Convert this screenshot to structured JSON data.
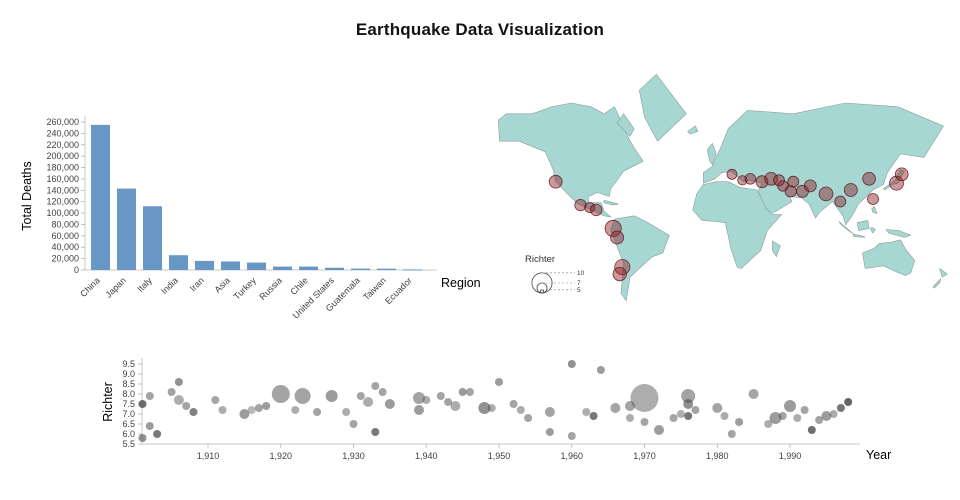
{
  "title": "Earthquake Data Visualization",
  "colors": {
    "bar": "#6897c6",
    "map_land": "#a6d7d3",
    "map_border": "#8d9e9c",
    "quake_fill": "#8c1c24",
    "quake_stroke": "#5e1014",
    "point": "#4a4a4a",
    "axis_label": "#3f3f3f",
    "axis_title": "#000000",
    "domain_line": "#c9c9c9",
    "tick": "#b6b6b6"
  },
  "chart_data": [
    {
      "type": "bar",
      "name": "total-deaths-by-region",
      "xlabel": "Region",
      "ylabel": "Total Deaths",
      "categories": [
        "China",
        "Japan",
        "Italy",
        "India",
        "Iran",
        "Asia",
        "Turkey",
        "Russia",
        "Chile",
        "United States",
        "Guatemala",
        "Taiwan",
        "Ecuador"
      ],
      "values": [
        255000,
        143000,
        112000,
        26000,
        16000,
        15000,
        13000,
        6000,
        6000,
        4000,
        2500,
        2400,
        1000
      ],
      "ylim": [
        0,
        260000
      ],
      "ytick_step": 20000
    },
    {
      "type": "map",
      "name": "earthquake-world-map",
      "legend_title": "Richter",
      "legend_values": [
        5,
        7,
        10
      ],
      "points": [
        {
          "lon": -122,
          "lat": 37,
          "richter": 7.8
        },
        {
          "lon": -103,
          "lat": 19,
          "richter": 7.4
        },
        {
          "lon": -96,
          "lat": 17,
          "richter": 7.0
        },
        {
          "lon": -91,
          "lat": 15,
          "richter": 7.5
        },
        {
          "lon": -78,
          "lat": -1,
          "richter": 8.8
        },
        {
          "lon": -75,
          "lat": -9,
          "richter": 7.9
        },
        {
          "lon": -71,
          "lat": -33,
          "richter": 8.5
        },
        {
          "lon": -73,
          "lat": -38,
          "richter": 8.0
        },
        {
          "lon": 13,
          "lat": 42,
          "richter": 7.0
        },
        {
          "lon": 21,
          "lat": 38,
          "richter": 6.8
        },
        {
          "lon": 27,
          "lat": 39,
          "richter": 7.2
        },
        {
          "lon": 36,
          "lat": 37,
          "richter": 7.6
        },
        {
          "lon": 43,
          "lat": 39,
          "richter": 7.8
        },
        {
          "lon": 49,
          "lat": 38,
          "richter": 7.3
        },
        {
          "lon": 52,
          "lat": 34,
          "richter": 7.2
        },
        {
          "lon": 58,
          "lat": 30,
          "richter": 7.4
        },
        {
          "lon": 60,
          "lat": 37,
          "richter": 7.3
        },
        {
          "lon": 67,
          "lat": 30,
          "richter": 7.6
        },
        {
          "lon": 73,
          "lat": 34,
          "richter": 7.6
        },
        {
          "lon": 85,
          "lat": 28,
          "richter": 8.1
        },
        {
          "lon": 96,
          "lat": 22,
          "richter": 7.3
        },
        {
          "lon": 104,
          "lat": 31,
          "richter": 7.9
        },
        {
          "lon": 118,
          "lat": 39,
          "richter": 7.8
        },
        {
          "lon": 121,
          "lat": 24,
          "richter": 7.3
        },
        {
          "lon": 139,
          "lat": 36,
          "richter": 8.2
        },
        {
          "lon": 143,
          "lat": 42,
          "richter": 7.8
        }
      ]
    },
    {
      "type": "scatter",
      "name": "richter-by-year",
      "xlabel": "Year",
      "ylabel": "Richter",
      "xlim": [
        1900,
        1999
      ],
      "ylim": [
        5.5,
        9.5
      ],
      "xticks": [
        1910,
        1920,
        1930,
        1940,
        1950,
        1960,
        1970,
        1980,
        1990
      ],
      "yticks": [
        5.5,
        6.0,
        6.5,
        7.0,
        7.5,
        8.0,
        8.5,
        9.0,
        9.5
      ],
      "point_format": "[year, richter, radius_px, opacity]",
      "points": [
        [
          1901,
          7.5,
          4,
          0.8
        ],
        [
          1901,
          5.8,
          4,
          0.6
        ],
        [
          1902,
          7.9,
          4,
          0.5
        ],
        [
          1902,
          6.4,
          4,
          0.55
        ],
        [
          1903,
          6.0,
          4,
          0.75
        ],
        [
          1905,
          8.1,
          4,
          0.5
        ],
        [
          1906,
          8.6,
          4,
          0.6
        ],
        [
          1906,
          7.7,
          5,
          0.45
        ],
        [
          1907,
          7.4,
          4,
          0.5
        ],
        [
          1908,
          7.1,
          4,
          0.7
        ],
        [
          1911,
          7.7,
          4,
          0.5
        ],
        [
          1912,
          7.2,
          4,
          0.45
        ],
        [
          1915,
          7.0,
          5,
          0.55
        ],
        [
          1916,
          7.2,
          4,
          0.4
        ],
        [
          1917,
          7.3,
          4,
          0.5
        ],
        [
          1918,
          7.4,
          4,
          0.55
        ],
        [
          1920,
          8.0,
          9,
          0.5
        ],
        [
          1922,
          7.2,
          4,
          0.45
        ],
        [
          1923,
          7.9,
          8,
          0.5
        ],
        [
          1925,
          7.1,
          4,
          0.5
        ],
        [
          1927,
          7.9,
          6,
          0.55
        ],
        [
          1929,
          7.1,
          4,
          0.45
        ],
        [
          1930,
          6.5,
          4,
          0.5
        ],
        [
          1931,
          7.9,
          4,
          0.5
        ],
        [
          1932,
          7.6,
          5,
          0.45
        ],
        [
          1933,
          8.4,
          4,
          0.5
        ],
        [
          1933,
          6.1,
          4,
          0.75
        ],
        [
          1934,
          8.1,
          4,
          0.5
        ],
        [
          1935,
          7.5,
          5,
          0.55
        ],
        [
          1939,
          7.8,
          6,
          0.5
        ],
        [
          1939,
          7.2,
          5,
          0.55
        ],
        [
          1940,
          7.7,
          4,
          0.45
        ],
        [
          1942,
          7.9,
          4,
          0.5
        ],
        [
          1943,
          7.6,
          4,
          0.5
        ],
        [
          1944,
          7.4,
          5,
          0.45
        ],
        [
          1945,
          8.1,
          4,
          0.55
        ],
        [
          1946,
          8.1,
          4,
          0.5
        ],
        [
          1948,
          7.3,
          6,
          0.6
        ],
        [
          1949,
          7.3,
          4,
          0.45
        ],
        [
          1950,
          8.6,
          4,
          0.55
        ],
        [
          1952,
          7.5,
          4,
          0.5
        ],
        [
          1953,
          7.2,
          4,
          0.45
        ],
        [
          1954,
          6.8,
          4,
          0.5
        ],
        [
          1957,
          7.1,
          5,
          0.5
        ],
        [
          1957,
          6.1,
          4,
          0.55
        ],
        [
          1960,
          9.5,
          4,
          0.6
        ],
        [
          1960,
          5.9,
          4,
          0.5
        ],
        [
          1962,
          7.1,
          4,
          0.45
        ],
        [
          1963,
          6.9,
          4,
          0.75
        ],
        [
          1964,
          9.2,
          4,
          0.55
        ],
        [
          1966,
          7.3,
          5,
          0.5
        ],
        [
          1968,
          7.4,
          5,
          0.5
        ],
        [
          1968,
          6.8,
          4,
          0.45
        ],
        [
          1970,
          7.8,
          14,
          0.45
        ],
        [
          1970,
          6.6,
          4,
          0.5
        ],
        [
          1972,
          6.2,
          5,
          0.55
        ],
        [
          1974,
          6.8,
          4,
          0.5
        ],
        [
          1975,
          7.0,
          4,
          0.45
        ],
        [
          1976,
          7.9,
          7,
          0.5
        ],
        [
          1976,
          7.5,
          5,
          0.6
        ],
        [
          1976,
          6.9,
          4,
          0.75
        ],
        [
          1977,
          7.2,
          4,
          0.5
        ],
        [
          1980,
          7.3,
          5,
          0.5
        ],
        [
          1981,
          6.9,
          4,
          0.45
        ],
        [
          1982,
          6.0,
          4,
          0.5
        ],
        [
          1983,
          6.6,
          4,
          0.55
        ],
        [
          1985,
          8.0,
          5,
          0.5
        ],
        [
          1987,
          6.5,
          4,
          0.45
        ],
        [
          1988,
          6.8,
          6,
          0.55
        ],
        [
          1989,
          6.9,
          4,
          0.5
        ],
        [
          1990,
          7.4,
          6,
          0.55
        ],
        [
          1991,
          6.8,
          4,
          0.45
        ],
        [
          1992,
          7.2,
          4,
          0.5
        ],
        [
          1993,
          6.2,
          4,
          0.8
        ],
        [
          1994,
          6.7,
          4,
          0.5
        ],
        [
          1995,
          6.9,
          5,
          0.55
        ],
        [
          1996,
          7.0,
          4,
          0.45
        ],
        [
          1997,
          7.3,
          4,
          0.75
        ],
        [
          1998,
          7.6,
          4,
          0.85
        ]
      ]
    }
  ]
}
